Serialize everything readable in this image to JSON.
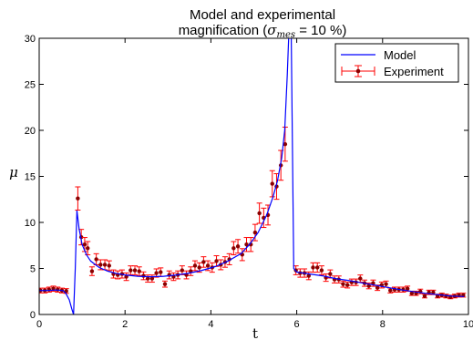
{
  "chart_data": {
    "type": "line",
    "title_line1": "Model and experimental",
    "title_line2_prefix": "magnification (",
    "title_sigma": "σ",
    "title_sub": "mes",
    "title_line2_suffix": " = 10 %)",
    "xlabel": "t",
    "ylabel": "μ",
    "xlim": [
      0,
      10
    ],
    "ylim": [
      0,
      30
    ],
    "xticks": [
      0,
      2,
      4,
      6,
      8,
      10
    ],
    "yticks": [
      0,
      5,
      10,
      15,
      20,
      25,
      30
    ],
    "grid": false,
    "legend_position": "top-right",
    "colors": {
      "model": "#0000ff",
      "experiment_error": "#ff0000",
      "experiment_point": "#8b0000"
    },
    "series": [
      {
        "name": "Model",
        "kind": "line",
        "points": [
          [
            0.0,
            2.6
          ],
          [
            0.2,
            2.6
          ],
          [
            0.4,
            2.65
          ],
          [
            0.55,
            2.6
          ],
          [
            0.62,
            2.3
          ],
          [
            0.7,
            1.6
          ],
          [
            0.76,
            0.6
          ],
          [
            0.8,
            0.0
          ],
          [
            0.84,
            5.0
          ],
          [
            0.88,
            11.3
          ],
          [
            0.93,
            9.3
          ],
          [
            1.0,
            7.6
          ],
          [
            1.1,
            6.5
          ],
          [
            1.2,
            5.8
          ],
          [
            1.4,
            5.1
          ],
          [
            1.6,
            4.7
          ],
          [
            1.8,
            4.45
          ],
          [
            2.0,
            4.3
          ],
          [
            2.3,
            4.15
          ],
          [
            2.6,
            4.1
          ],
          [
            2.9,
            4.15
          ],
          [
            3.2,
            4.3
          ],
          [
            3.5,
            4.5
          ],
          [
            3.8,
            4.8
          ],
          [
            4.1,
            5.2
          ],
          [
            4.4,
            5.8
          ],
          [
            4.7,
            6.6
          ],
          [
            4.9,
            7.6
          ],
          [
            5.1,
            8.9
          ],
          [
            5.3,
            10.8
          ],
          [
            5.45,
            12.8
          ],
          [
            5.55,
            14.5
          ],
          [
            5.65,
            17.0
          ],
          [
            5.72,
            20.0
          ],
          [
            5.78,
            26.0
          ],
          [
            5.82,
            31.0
          ],
          [
            5.87,
            31.0
          ],
          [
            5.9,
            18.0
          ],
          [
            5.93,
            5.0
          ],
          [
            6.0,
            4.6
          ],
          [
            6.3,
            4.4
          ],
          [
            6.6,
            4.2
          ],
          [
            6.9,
            3.9
          ],
          [
            7.2,
            3.7
          ],
          [
            7.5,
            3.45
          ],
          [
            7.8,
            3.2
          ],
          [
            8.1,
            2.95
          ],
          [
            8.4,
            2.7
          ],
          [
            8.7,
            2.5
          ],
          [
            9.0,
            2.3
          ],
          [
            9.3,
            2.15
          ],
          [
            9.6,
            2.0
          ],
          [
            9.9,
            1.95
          ]
        ]
      },
      {
        "name": "Experiment",
        "kind": "errorbar",
        "points": [
          [
            0.03,
            2.6
          ],
          [
            0.13,
            2.6
          ],
          [
            0.23,
            2.7
          ],
          [
            0.33,
            2.8
          ],
          [
            0.43,
            2.7
          ],
          [
            0.53,
            2.6
          ],
          [
            0.63,
            2.55
          ],
          [
            0.9,
            12.6
          ],
          [
            0.98,
            8.4
          ],
          [
            1.06,
            7.6
          ],
          [
            1.13,
            7.2
          ],
          [
            1.23,
            4.7
          ],
          [
            1.33,
            6.0
          ],
          [
            1.43,
            5.4
          ],
          [
            1.53,
            5.4
          ],
          [
            1.63,
            5.3
          ],
          [
            1.73,
            4.4
          ],
          [
            1.83,
            4.3
          ],
          [
            1.93,
            4.4
          ],
          [
            2.03,
            4.1
          ],
          [
            2.13,
            4.8
          ],
          [
            2.23,
            4.8
          ],
          [
            2.33,
            4.7
          ],
          [
            2.43,
            4.2
          ],
          [
            2.53,
            3.9
          ],
          [
            2.63,
            3.9
          ],
          [
            2.73,
            4.5
          ],
          [
            2.83,
            4.6
          ],
          [
            2.93,
            3.3
          ],
          [
            3.03,
            4.3
          ],
          [
            3.13,
            4.1
          ],
          [
            3.23,
            4.3
          ],
          [
            3.33,
            4.8
          ],
          [
            3.43,
            4.3
          ],
          [
            3.53,
            4.7
          ],
          [
            3.63,
            5.3
          ],
          [
            3.73,
            5.1
          ],
          [
            3.83,
            5.7
          ],
          [
            3.93,
            5.3
          ],
          [
            4.03,
            5.1
          ],
          [
            4.13,
            5.8
          ],
          [
            4.23,
            5.4
          ],
          [
            4.33,
            5.7
          ],
          [
            4.43,
            6.0
          ],
          [
            4.53,
            7.2
          ],
          [
            4.63,
            7.4
          ],
          [
            4.73,
            6.5
          ],
          [
            4.83,
            7.6
          ],
          [
            4.93,
            7.6
          ],
          [
            5.03,
            8.9
          ],
          [
            5.13,
            11.0
          ],
          [
            5.23,
            10.5
          ],
          [
            5.33,
            10.8
          ],
          [
            5.43,
            14.2
          ],
          [
            5.53,
            13.9
          ],
          [
            5.63,
            16.2
          ],
          [
            5.73,
            18.5
          ],
          [
            5.98,
            4.8
          ],
          [
            6.08,
            4.5
          ],
          [
            6.18,
            4.5
          ],
          [
            6.28,
            4.2
          ],
          [
            6.38,
            5.1
          ],
          [
            6.48,
            5.1
          ],
          [
            6.58,
            4.8
          ],
          [
            6.68,
            4.0
          ],
          [
            6.78,
            4.4
          ],
          [
            6.88,
            3.8
          ],
          [
            6.98,
            3.8
          ],
          [
            7.08,
            3.3
          ],
          [
            7.18,
            3.2
          ],
          [
            7.28,
            3.5
          ],
          [
            7.38,
            3.5
          ],
          [
            7.48,
            3.9
          ],
          [
            7.58,
            3.4
          ],
          [
            7.68,
            3.1
          ],
          [
            7.78,
            3.4
          ],
          [
            7.88,
            2.9
          ],
          [
            7.98,
            3.2
          ],
          [
            8.08,
            3.3
          ],
          [
            8.18,
            2.6
          ],
          [
            8.28,
            2.7
          ],
          [
            8.38,
            2.7
          ],
          [
            8.48,
            2.7
          ],
          [
            8.58,
            2.8
          ],
          [
            8.68,
            2.3
          ],
          [
            8.78,
            2.3
          ],
          [
            8.88,
            2.5
          ],
          [
            8.98,
            2.0
          ],
          [
            9.08,
            2.4
          ],
          [
            9.18,
            2.4
          ],
          [
            9.28,
            2.0
          ],
          [
            9.38,
            2.1
          ],
          [
            9.48,
            2.0
          ],
          [
            9.58,
            1.9
          ],
          [
            9.68,
            2.0
          ],
          [
            9.78,
            2.1
          ],
          [
            9.88,
            2.1
          ]
        ]
      }
    ]
  }
}
